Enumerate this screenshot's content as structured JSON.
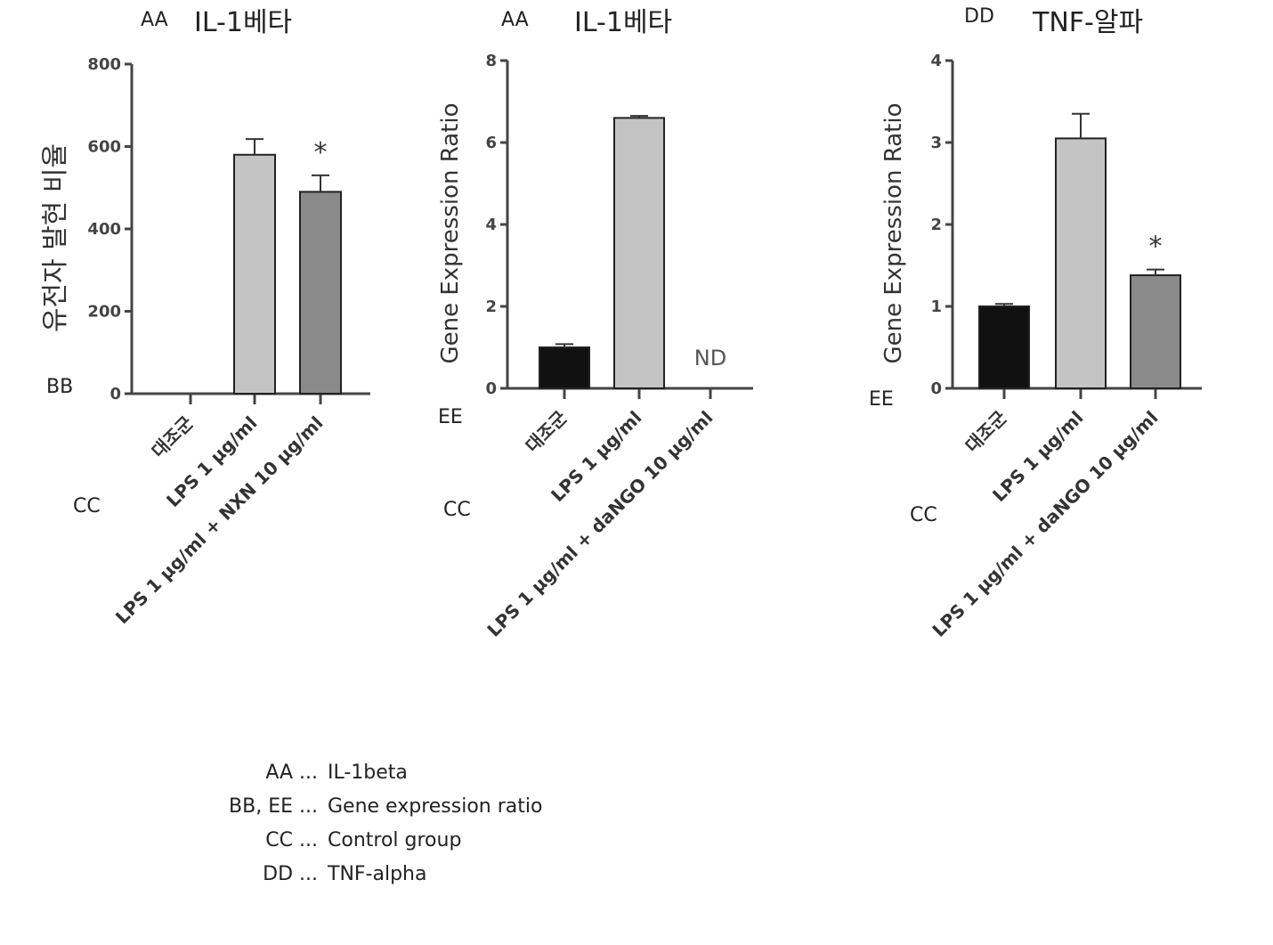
{
  "chart_data": [
    {
      "type": "bar",
      "panel_code": "AA",
      "title": "IL-1베타",
      "ylabel": "유전자 발현 비율",
      "ylabel_code": "BB",
      "xcode": "CC",
      "ylim": [
        0,
        800
      ],
      "yticks": [
        "0",
        "200",
        "400",
        "600",
        "800"
      ],
      "categories": [
        "대조군",
        "LPS 1 μg/ml",
        "LPS 1 μg/ml + NXN 10 μg/ml"
      ],
      "values": [
        0,
        580,
        490
      ],
      "errors": [
        0,
        38,
        40
      ],
      "bar_colors": [
        "#111111",
        "#c4c4c4",
        "#8a8a8a"
      ],
      "annotations": [
        "",
        "",
        "*"
      ]
    },
    {
      "type": "bar",
      "panel_code": "AA",
      "title": "IL-1베타",
      "ylabel": "Gene Expression Ratio",
      "ylabel_code": "EE",
      "xcode": "CC",
      "ylim": [
        0,
        8
      ],
      "yticks": [
        "0",
        "2",
        "4",
        "6",
        "8"
      ],
      "categories": [
        "대조군",
        "LPS 1 μg/ml",
        "LPS 1 μg/ml + daNGO 10 μg/ml"
      ],
      "values": [
        1.0,
        6.6,
        null
      ],
      "errors": [
        0.08,
        0.05,
        0
      ],
      "bar_colors": [
        "#111111",
        "#c4c4c4",
        "#8a8a8a"
      ],
      "annotations": [
        "",
        "",
        "ND"
      ]
    },
    {
      "type": "bar",
      "panel_code": "DD",
      "title": "TNF-알파",
      "ylabel": "Gene Expression Ratio",
      "ylabel_code": "EE",
      "xcode": "CC",
      "ylim": [
        0,
        4
      ],
      "yticks": [
        "0",
        "1",
        "2",
        "3",
        "4"
      ],
      "categories": [
        "대조군",
        "LPS 1 μg/ml",
        "LPS 1 μg/ml + daNGO 10 μg/ml"
      ],
      "values": [
        1.0,
        3.05,
        1.38
      ],
      "errors": [
        0.03,
        0.3,
        0.07
      ],
      "bar_colors": [
        "#111111",
        "#c4c4c4",
        "#8a8a8a"
      ],
      "annotations": [
        "",
        "",
        "*"
      ]
    }
  ],
  "legend_notes": [
    {
      "code": "AA ...",
      "text": "IL-1beta"
    },
    {
      "code": "BB, EE ...",
      "text": "Gene expression ratio"
    },
    {
      "code": "CC ...",
      "text": "Control group"
    },
    {
      "code": "DD ...",
      "text": "TNF-alpha"
    }
  ]
}
